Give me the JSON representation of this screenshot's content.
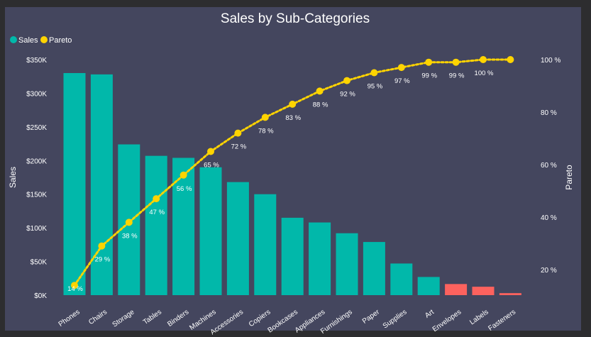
{
  "chart_data": {
    "type": "bar+line",
    "title": "Sales by Sub-Categories",
    "legend": {
      "placement": "top-left",
      "entries": [
        "Sales",
        "Pareto"
      ]
    },
    "ylabel": "Sales",
    "y2label": "Pareto",
    "ylim": [
      0,
      350000
    ],
    "y2lim": [
      0,
      100
    ],
    "yticks": [
      "$0K",
      "$50K",
      "$100K",
      "$150K",
      "$200K",
      "$250K",
      "$300K",
      "$350K"
    ],
    "y2ticks": [
      "20 %",
      "40 %",
      "60 %",
      "80 %",
      "100 %"
    ],
    "grid": false,
    "categories": [
      "Phones",
      "Chairs",
      "Storage",
      "Tables",
      "Binders",
      "Machines",
      "Accessories",
      "Copiers",
      "Bookcases",
      "Appliances",
      "Furnishings",
      "Paper",
      "Supplies",
      "Art",
      "Envelopes",
      "Labels",
      "Fasteners"
    ],
    "series": [
      {
        "name": "Sales",
        "type": "bar",
        "values": [
          330000,
          328000,
          224000,
          207000,
          204000,
          190000,
          168000,
          150000,
          115000,
          108000,
          92000,
          79000,
          47000,
          27000,
          16500,
          12500,
          3000
        ],
        "highlighted": [
          false,
          false,
          false,
          false,
          false,
          false,
          false,
          false,
          false,
          false,
          false,
          false,
          false,
          false,
          true,
          true,
          true
        ]
      },
      {
        "name": "Pareto",
        "type": "line",
        "values": [
          14,
          29,
          38,
          47,
          56,
          65,
          72,
          78,
          83,
          88,
          92,
          95,
          97,
          99,
          99,
          100,
          100
        ],
        "labels": [
          "14 %",
          "29 %",
          "38 %",
          "47 %",
          "56 %",
          "65 %",
          "72 %",
          "78 %",
          "83 %",
          "88 %",
          "92 %",
          "95 %",
          "97 %",
          "99 %",
          "99 %",
          "100 %",
          ""
        ]
      }
    ],
    "colors": {
      "bar": "#01B8AA",
      "bar_highlight": "#FD625E",
      "line": "#FFD400",
      "background": "#44465E",
      "text": "#FFFFFF"
    }
  }
}
